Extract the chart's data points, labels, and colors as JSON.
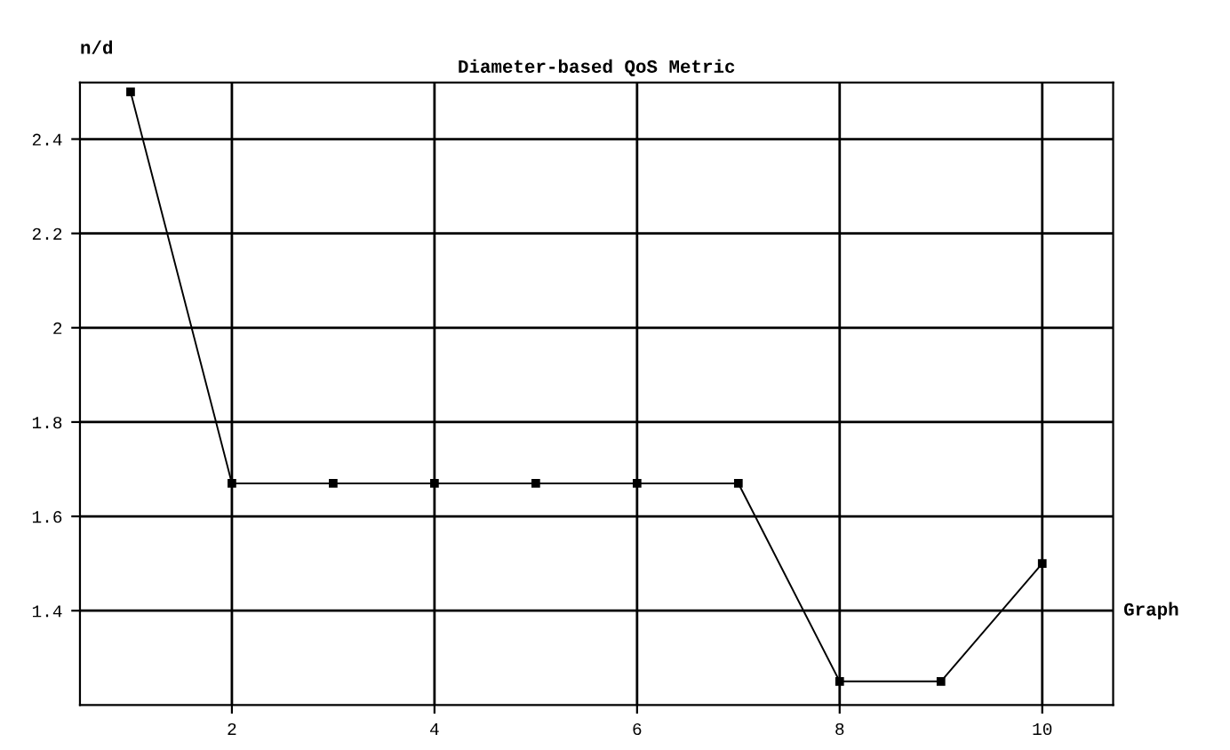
{
  "chart_data": {
    "type": "line",
    "title": "Diameter-based QoS Metric",
    "xlabel": "Graph",
    "ylabel": "n/d",
    "x": [
      1,
      2,
      3,
      4,
      5,
      6,
      7,
      8,
      9,
      10
    ],
    "series": [
      {
        "color": "#000000",
        "values": [
          2.5,
          1.67,
          1.67,
          1.67,
          1.67,
          1.67,
          1.67,
          1.25,
          1.25,
          1.5
        ]
      }
    ],
    "xlim": [
      0.5,
      10.7
    ],
    "ylim": [
      1.2,
      2.52
    ],
    "xticks": [
      2,
      4,
      6,
      8,
      10
    ],
    "yticks": [
      1.4,
      1.6,
      1.8,
      2,
      2.2,
      2.4
    ],
    "grid": true,
    "marker": "square",
    "line_style": "solid"
  }
}
